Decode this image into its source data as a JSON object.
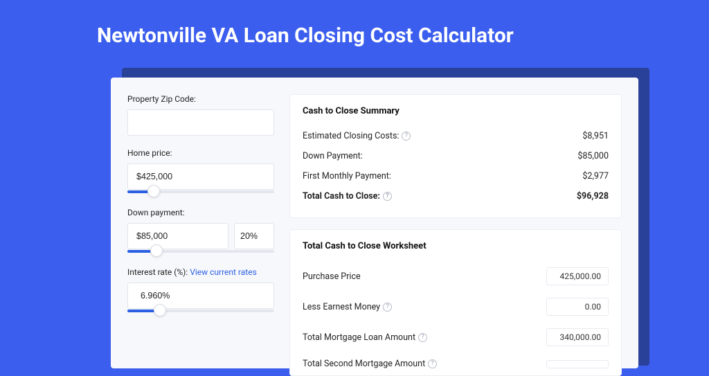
{
  "colors": {
    "page_bg": "#3b5eee",
    "shadow": "#2a4199",
    "card_bg": "#f7f8fb",
    "panel_bg": "#ffffff",
    "border": "#e2e4ea",
    "accent": "#2b5fe3",
    "text": "#222222"
  },
  "title": "Newtonville VA Loan Closing Cost Calculator",
  "form": {
    "zip": {
      "label": "Property Zip Code:",
      "value": ""
    },
    "home_price": {
      "label": "Home price:",
      "value": "$425,000",
      "slider_pct": 18
    },
    "down_payment": {
      "label": "Down payment:",
      "value": "$85,000",
      "pct_value": "20%",
      "slider_pct": 20
    },
    "interest": {
      "label": "Interest rate (%): ",
      "link": "View current rates",
      "value": "6.960%",
      "slider_pct": 22
    }
  },
  "summary": {
    "title": "Cash to Close Summary",
    "rows": [
      {
        "label": "Estimated Closing Costs:",
        "help": true,
        "value": "$8,951",
        "bold": false
      },
      {
        "label": "Down Payment:",
        "help": false,
        "value": "$85,000",
        "bold": false
      },
      {
        "label": "First Monthly Payment:",
        "help": false,
        "value": "$2,977",
        "bold": false
      },
      {
        "label": "Total Cash to Close:",
        "help": true,
        "value": "$96,928",
        "bold": true
      }
    ]
  },
  "worksheet": {
    "title": "Total Cash to Close Worksheet",
    "rows": [
      {
        "label": "Purchase Price",
        "help": false,
        "value": "425,000.00"
      },
      {
        "label": "Less Earnest Money",
        "help": true,
        "value": "0.00"
      },
      {
        "label": "Total Mortgage Loan Amount",
        "help": true,
        "value": "340,000.00"
      },
      {
        "label": "Total Second Mortgage Amount",
        "help": true,
        "value": ""
      }
    ]
  }
}
